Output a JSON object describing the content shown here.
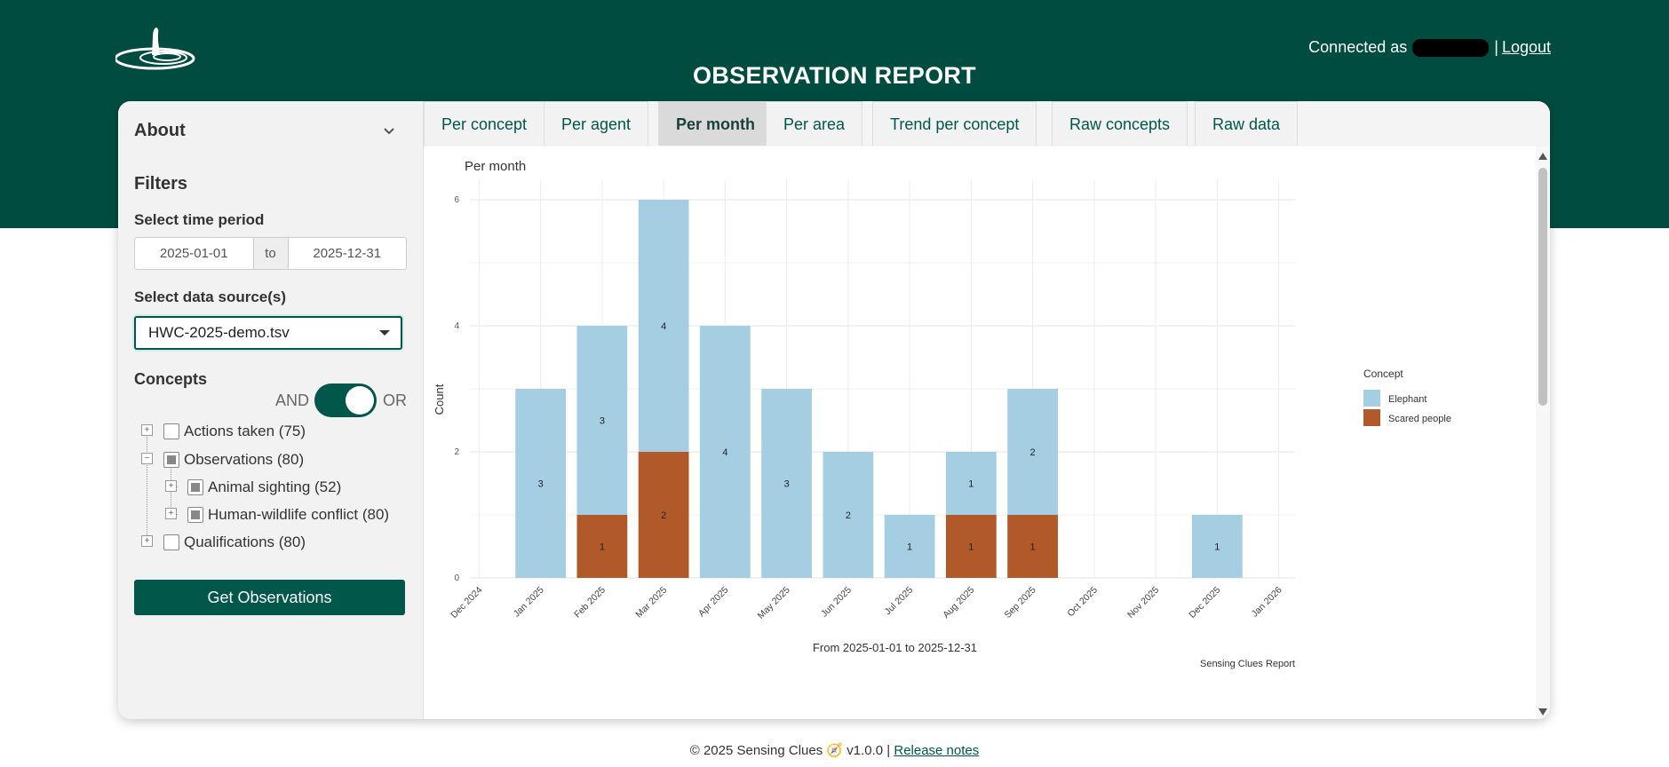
{
  "header": {
    "connected_label": "Connected as",
    "logout": "Logout",
    "title": "OBSERVATION REPORT"
  },
  "sidebar": {
    "about": "About",
    "filters": "Filters",
    "time_label": "Select time period",
    "date_from": "2025-01-01",
    "date_to_label": "to",
    "date_to": "2025-12-31",
    "source_label": "Select data source(s)",
    "source_value": "HWC-2025-demo.tsv",
    "concepts": "Concepts",
    "and": "AND",
    "or": "OR",
    "tree": [
      {
        "label": "Actions taken (75)"
      },
      {
        "label": "Observations (80)"
      },
      {
        "label": "Animal sighting (52)"
      },
      {
        "label": "Human-wildlife conflict (80)"
      },
      {
        "label": "Qualifications (80)"
      }
    ],
    "get_button": "Get Observations"
  },
  "tabs": [
    {
      "label": "Per concept"
    },
    {
      "label": "Per agent"
    },
    {
      "label": "Per month"
    },
    {
      "label": "Per area"
    },
    {
      "label": "Trend per concept"
    },
    {
      "label": "Raw concepts"
    },
    {
      "label": "Raw data"
    }
  ],
  "chart_data": {
    "type": "bar",
    "stacked": true,
    "title": "Per month",
    "xlabel": "From 2025-01-01 to 2025-12-31",
    "ylabel": "Count",
    "ylim": [
      0,
      6
    ],
    "yticks": [
      0,
      2,
      4,
      6
    ],
    "x_ticks": [
      "Dec 2024",
      "Jan 2025",
      "Feb 2025",
      "Mar 2025",
      "Apr 2025",
      "May 2025",
      "Jun 2025",
      "Jul 2025",
      "Aug 2025",
      "Sep 2025",
      "Oct 2025",
      "Nov 2025",
      "Dec 2025",
      "Jan 2026"
    ],
    "categories": [
      "Jan 2025",
      "Feb 2025",
      "Mar 2025",
      "Apr 2025",
      "May 2025",
      "Jun 2025",
      "Jul 2025",
      "Aug 2025",
      "Sep 2025",
      "Oct 2025",
      "Nov 2025",
      "Dec 2025"
    ],
    "series": [
      {
        "name": "Scared people",
        "color": "#b15928",
        "values": [
          0,
          1,
          2,
          0,
          0,
          0,
          0,
          1,
          1,
          0,
          0,
          0
        ]
      },
      {
        "name": "Elephant",
        "color": "#a6cee3",
        "values": [
          3,
          3,
          4,
          4,
          3,
          2,
          1,
          1,
          2,
          0,
          0,
          1
        ]
      }
    ],
    "legend_title": "Concept",
    "legend_order": [
      "Elephant",
      "Scared people"
    ],
    "caption": "Sensing Clues Report"
  },
  "footer": {
    "copyright": "© 2025 Sensing Clues",
    "version": "v1.0.0 |",
    "release_notes": "Release notes"
  }
}
